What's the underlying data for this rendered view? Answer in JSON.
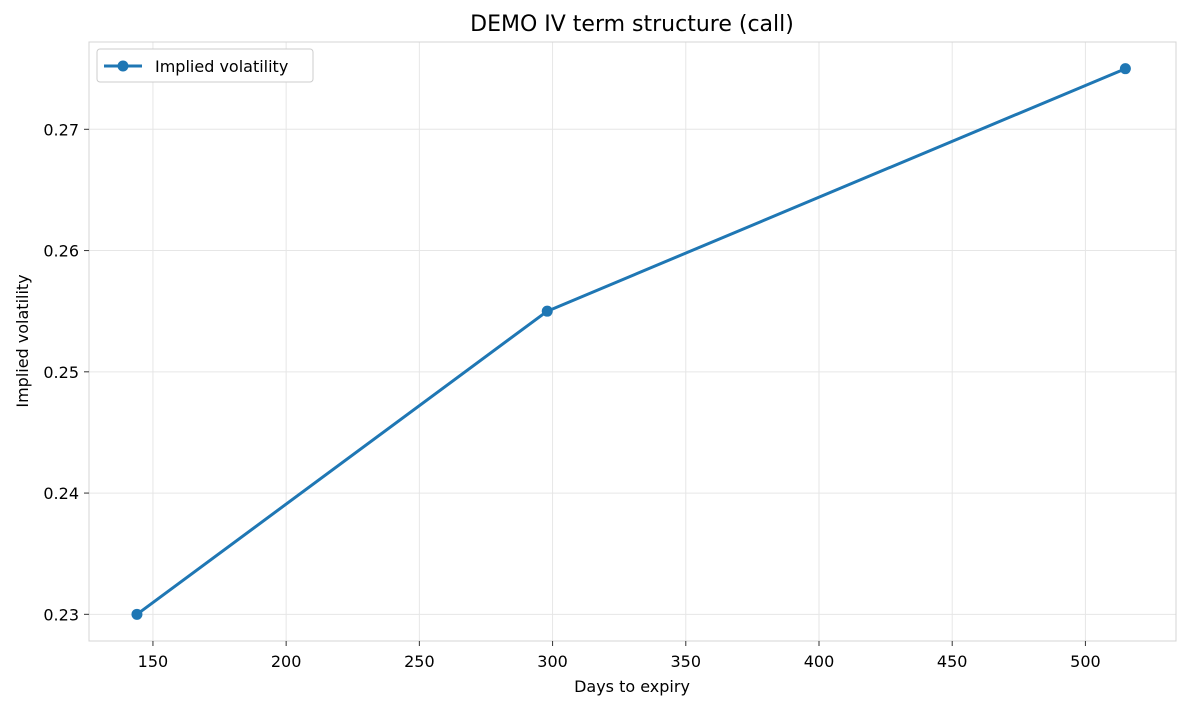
{
  "chart_data": {
    "type": "line",
    "title": "DEMO IV term structure (call)",
    "xlabel": "Days to expiry",
    "ylabel": "Implied volatility",
    "xlim": [
      126,
      534
    ],
    "ylim": [
      0.2278,
      0.2772
    ],
    "xticks": [
      150,
      200,
      250,
      300,
      350,
      400,
      450,
      500
    ],
    "yticks": [
      0.23,
      0.24,
      0.25,
      0.26,
      0.27
    ],
    "ytick_labels": [
      "0.23",
      "0.24",
      "0.25",
      "0.26",
      "0.27"
    ],
    "grid": true,
    "legend_position": "top-left",
    "series": [
      {
        "name": "Implied volatility",
        "color": "#1f77b4",
        "marker": "circle",
        "x": [
          144,
          298,
          515
        ],
        "y": [
          0.23,
          0.255,
          0.275
        ]
      }
    ]
  }
}
